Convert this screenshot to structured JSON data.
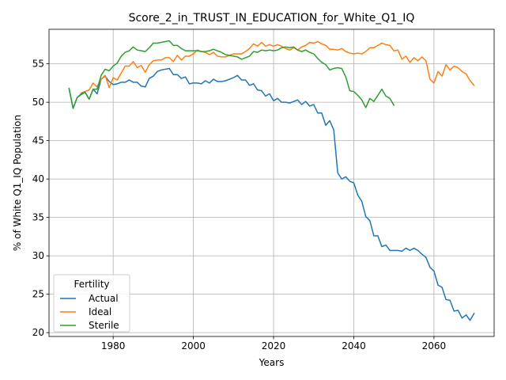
{
  "chart_data": {
    "type": "line",
    "title": "Score_2_in_TRUST_IN_EDUCATION_for_White_Q1_IQ",
    "xlabel": "Years",
    "ylabel": "% of White Q1_IQ Population",
    "xlim": [
      1964,
      2075
    ],
    "ylim": [
      19.5,
      59.5
    ],
    "xticks": [
      1980,
      2000,
      2020,
      2040,
      2060
    ],
    "yticks": [
      20,
      25,
      30,
      35,
      40,
      45,
      50,
      55
    ],
    "grid": true,
    "legend": {
      "title": "Fertility",
      "position": "lower-left"
    },
    "series": [
      {
        "name": "Actual",
        "color": "#1f77b4",
        "x": [
          1969,
          1970,
          1971,
          1972,
          1973,
          1974,
          1975,
          1976,
          1977,
          1978,
          1979,
          1980,
          1981,
          1982,
          1983,
          1984,
          1985,
          1986,
          1987,
          1988,
          1989,
          1990,
          1991,
          1992,
          1993,
          1994,
          1995,
          1996,
          1997,
          1998,
          1999,
          2000,
          2001,
          2002,
          2003,
          2004,
          2005,
          2006,
          2007,
          2008,
          2009,
          2010,
          2011,
          2012,
          2013,
          2014,
          2015,
          2016,
          2017,
          2018,
          2019,
          2020,
          2021,
          2022,
          2023,
          2024,
          2025,
          2026,
          2027,
          2028,
          2029,
          2030,
          2031,
          2032,
          2033,
          2034,
          2035,
          2036,
          2037,
          2038,
          2039,
          2040,
          2041,
          2042,
          2043,
          2044,
          2045,
          2046,
          2047,
          2048,
          2049,
          2050,
          2051,
          2052,
          2053,
          2054,
          2055,
          2056,
          2057,
          2058,
          2059,
          2060,
          2061,
          2062,
          2063,
          2064,
          2065,
          2066,
          2067,
          2068,
          2069,
          2070
        ],
        "y": [
          51.8,
          49.2,
          50.6,
          51.0,
          51.3,
          50.4,
          51.7,
          51.1,
          53.0,
          53.4,
          52.7,
          52.3,
          52.4,
          52.6,
          52.6,
          52.9,
          52.6,
          52.6,
          52.1,
          52.0,
          53.1,
          53.4,
          54.0,
          54.2,
          54.3,
          54.4,
          53.6,
          53.6,
          53.1,
          53.3,
          52.4,
          52.5,
          52.5,
          52.4,
          52.8,
          52.5,
          53.0,
          52.7,
          52.7,
          52.8,
          53.0,
          53.2,
          53.5,
          52.9,
          52.9,
          52.2,
          52.4,
          51.6,
          51.5,
          50.8,
          51.1,
          50.2,
          50.5,
          50.0,
          50.0,
          49.9,
          50.1,
          50.3,
          49.7,
          50.1,
          49.5,
          49.7,
          48.6,
          48.6,
          47.0,
          47.6,
          46.4,
          40.8,
          40.0,
          40.3,
          39.7,
          39.5,
          37.9,
          37.1,
          35.1,
          34.6,
          32.6,
          32.6,
          31.2,
          31.4,
          30.7,
          30.7,
          30.7,
          30.6,
          31.0,
          30.7,
          31.0,
          30.7,
          30.2,
          29.8,
          28.5,
          28.0,
          26.2,
          25.9,
          24.3,
          24.2,
          22.8,
          22.9,
          21.9,
          22.3,
          21.6,
          22.5
        ]
      },
      {
        "name": "Ideal",
        "color": "#ff7f0e",
        "x": [
          1972,
          1973,
          1974,
          1975,
          1976,
          1977,
          1978,
          1979,
          1980,
          1981,
          1982,
          1983,
          1984,
          1985,
          1986,
          1987,
          1988,
          1989,
          1990,
          1991,
          1992,
          1993,
          1994,
          1995,
          1996,
          1997,
          1998,
          1999,
          2000,
          2001,
          2002,
          2003,
          2004,
          2005,
          2006,
          2007,
          2008,
          2009,
          2010,
          2011,
          2012,
          2013,
          2014,
          2015,
          2016,
          2017,
          2018,
          2019,
          2020,
          2021,
          2022,
          2023,
          2024,
          2025,
          2026,
          2027,
          2028,
          2029,
          2030,
          2031,
          2032,
          2033,
          2034,
          2035,
          2036,
          2037,
          2038,
          2039,
          2040,
          2041,
          2042,
          2043,
          2044,
          2045,
          2046,
          2047,
          2048,
          2049,
          2050,
          2051,
          2052,
          2053,
          2054,
          2055,
          2056,
          2057,
          2058,
          2059,
          2060,
          2061,
          2062,
          2063,
          2064,
          2065,
          2066,
          2067,
          2068,
          2069,
          2070
        ],
        "y": [
          51.2,
          51.4,
          51.6,
          52.5,
          52.0,
          53.0,
          53.5,
          51.9,
          53.2,
          52.9,
          53.8,
          54.7,
          54.7,
          55.3,
          54.5,
          54.8,
          53.9,
          54.9,
          55.4,
          55.5,
          55.5,
          55.8,
          55.8,
          55.3,
          56.1,
          55.5,
          56.0,
          56.0,
          56.3,
          56.8,
          56.6,
          56.5,
          56.2,
          56.5,
          56.0,
          55.9,
          55.9,
          56.1,
          56.3,
          56.3,
          56.3,
          56.6,
          57.0,
          57.6,
          57.3,
          57.8,
          57.3,
          57.5,
          57.3,
          57.5,
          57.3,
          57.0,
          56.8,
          57.1,
          56.8,
          57.2,
          57.4,
          57.8,
          57.7,
          57.9,
          57.6,
          57.4,
          56.9,
          56.9,
          56.8,
          57.0,
          56.6,
          56.4,
          56.3,
          56.4,
          56.3,
          56.6,
          57.1,
          57.1,
          57.4,
          57.7,
          57.5,
          57.4,
          56.7,
          56.8,
          55.6,
          56.0,
          55.2,
          55.8,
          55.4,
          55.9,
          55.4,
          53.0,
          52.5,
          54.0,
          53.4,
          54.9,
          54.2,
          54.7,
          54.5,
          54.0,
          53.7,
          52.8,
          52.2
        ]
      },
      {
        "name": "Sterile",
        "color": "#2ca02c",
        "x": [
          1969,
          1970,
          1971,
          1972,
          1973,
          1974,
          1975,
          1976,
          1977,
          1978,
          1979,
          1980,
          1981,
          1982,
          1983,
          1984,
          1985,
          1986,
          1987,
          1988,
          1989,
          1990,
          1991,
          1992,
          1993,
          1994,
          1995,
          1996,
          1997,
          1998,
          1999,
          2000,
          2001,
          2002,
          2003,
          2004,
          2005,
          2006,
          2007,
          2008,
          2009,
          2010,
          2011,
          2012,
          2013,
          2014,
          2015,
          2016,
          2017,
          2018,
          2019,
          2020,
          2021,
          2022,
          2023,
          2024,
          2025,
          2026,
          2027,
          2028,
          2029,
          2030,
          2031,
          2032,
          2033,
          2034,
          2035,
          2036,
          2037,
          2038,
          2039,
          2040,
          2041,
          2042,
          2043,
          2044,
          2045,
          2046,
          2047,
          2048,
          2049,
          2050
        ],
        "y": [
          51.8,
          49.2,
          50.6,
          51.1,
          51.3,
          50.4,
          51.7,
          51.7,
          53.5,
          54.3,
          54.1,
          54.7,
          55.1,
          56.0,
          56.5,
          56.7,
          57.2,
          56.8,
          56.7,
          56.6,
          57.1,
          57.7,
          57.7,
          57.8,
          57.9,
          58.0,
          57.4,
          57.4,
          57.0,
          56.7,
          56.7,
          56.7,
          56.7,
          56.6,
          56.6,
          56.7,
          56.9,
          56.7,
          56.5,
          56.2,
          56.1,
          56.0,
          55.9,
          55.6,
          55.8,
          56.0,
          56.6,
          56.5,
          56.8,
          56.7,
          56.8,
          56.7,
          56.8,
          57.1,
          57.2,
          57.1,
          57.2,
          56.8,
          56.6,
          56.8,
          56.5,
          56.3,
          55.7,
          55.2,
          54.9,
          54.2,
          54.4,
          54.5,
          54.4,
          53.3,
          51.5,
          51.4,
          50.9,
          50.3,
          49.3,
          50.5,
          50.1,
          50.9,
          51.7,
          50.8,
          50.5,
          49.6
        ]
      }
    ]
  }
}
